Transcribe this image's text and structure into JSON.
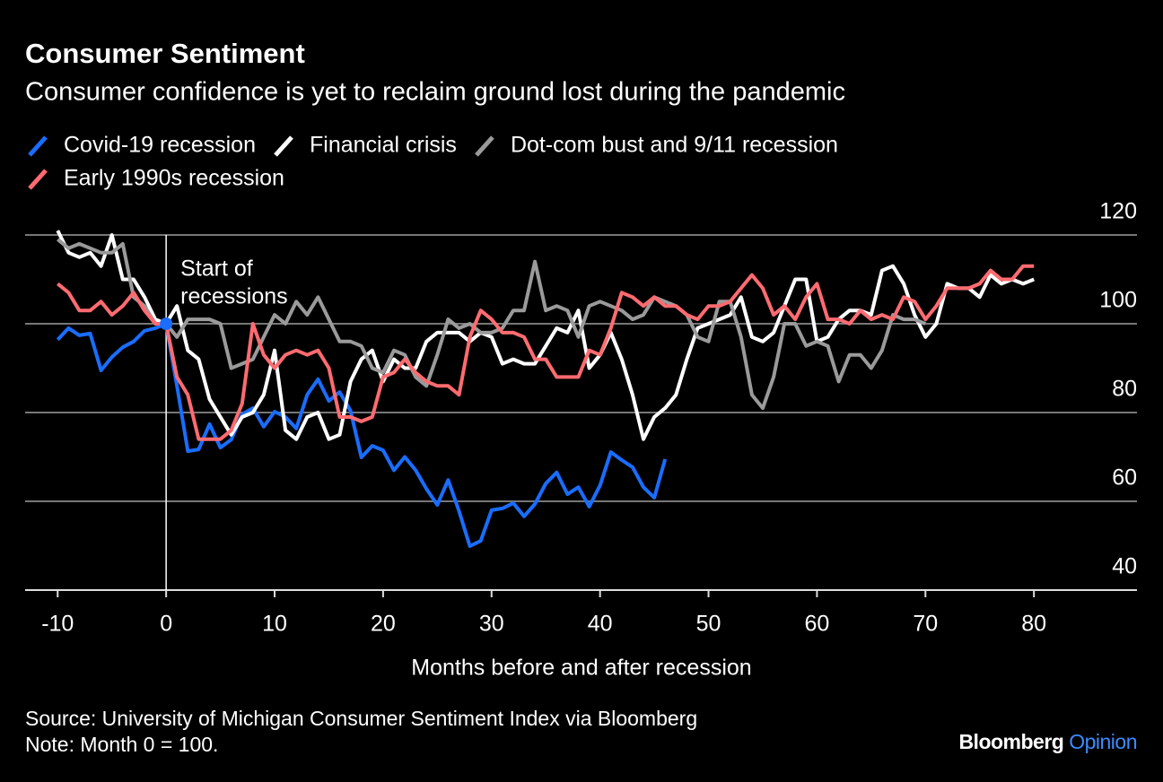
{
  "chart_data": {
    "type": "line",
    "title": "Consumer Sentiment",
    "subtitle": "Consumer confidence is yet to reclaim ground lost during the pandemic",
    "x_label": "Months before and after recession",
    "source": "Source: University of Michigan Consumer Sentiment Index via Bloomberg",
    "note": "Note: Month 0 = 100.",
    "brand": [
      "Bloomberg",
      "Opinion"
    ],
    "reference_line": {
      "x": 0,
      "label": [
        "Start of",
        "recessions"
      ]
    },
    "xlim": [
      -13,
      89.5
    ],
    "ylim": [
      40,
      120
    ],
    "xticks": [
      -10,
      0,
      10,
      20,
      30,
      40,
      50,
      60,
      70,
      80
    ],
    "yticks": [
      40,
      60,
      80,
      100,
      120
    ],
    "grid": true,
    "x": [
      -10,
      -9,
      -8,
      -7,
      -6,
      -5,
      -4,
      -3,
      -2,
      -1,
      0,
      1,
      2,
      3,
      4,
      5,
      6,
      7,
      8,
      9,
      10,
      11,
      12,
      13,
      14,
      15,
      16,
      17,
      18,
      19,
      20,
      21,
      22,
      23,
      24,
      25,
      26,
      27,
      28,
      29,
      30,
      31,
      32,
      33,
      34,
      35,
      36,
      37,
      38,
      39,
      40,
      41,
      42,
      43,
      44,
      45,
      46,
      47,
      48,
      49,
      50,
      51,
      52,
      53,
      54,
      55,
      56,
      57,
      58,
      59,
      60,
      61,
      62,
      63,
      64,
      65,
      66,
      67,
      68,
      69,
      70,
      71,
      72,
      73,
      74,
      75,
      76,
      77,
      78,
      79,
      80
    ],
    "series": [
      {
        "name": "Covid-19 recession",
        "color": "#1a6dff",
        "values": [
          96.4,
          99,
          97.4,
          97.8,
          89.5,
          92.5,
          94.7,
          96,
          98.4,
          99,
          100,
          86,
          71.3,
          71.7,
          77.4,
          72.1,
          73.9,
          79.6,
          81,
          76.8,
          80.2,
          79,
          76.4,
          84,
          87.5,
          82.6,
          84.6,
          80.4,
          69.9,
          72.5,
          71.5,
          67,
          70,
          67,
          62.8,
          59.2,
          64.8,
          57.8,
          49.9,
          51.1,
          58,
          58.4,
          59.6,
          56.6,
          59.4,
          64,
          66.5,
          61.6,
          63.2,
          58.8,
          63.6,
          71.1,
          69.3,
          67.7,
          63.2,
          60.8,
          69.5,
          null,
          null,
          null,
          null,
          null,
          null,
          null,
          null,
          null,
          null,
          null,
          null,
          null,
          null,
          null,
          null,
          null,
          null,
          null,
          null,
          null,
          null,
          null,
          null,
          null,
          null,
          null,
          null,
          null,
          null,
          null,
          null,
          null,
          null
        ]
      },
      {
        "name": "Financial crisis",
        "color": "#ffffff",
        "values": [
          121,
          116,
          115,
          116,
          113,
          120,
          110,
          110,
          106,
          101,
          100,
          104,
          94,
          92,
          83,
          79,
          75,
          79,
          80,
          84,
          94,
          76,
          74,
          79,
          80,
          74,
          75,
          87,
          92,
          94,
          87,
          92,
          90,
          90,
          96,
          98,
          98,
          98,
          96,
          98,
          97,
          91,
          92,
          91,
          91,
          95,
          99,
          98,
          103,
          90,
          93,
          98,
          92,
          84,
          74,
          79,
          81,
          84,
          92,
          99,
          100,
          101,
          102,
          106,
          97,
          96,
          98,
          104,
          110,
          110,
          96,
          97,
          101,
          103,
          103,
          102,
          112,
          113,
          109,
          102,
          97,
          100,
          109,
          108,
          108,
          106,
          111,
          109,
          110,
          109,
          110
        ]
      },
      {
        "name": "Dot-com bust and 9/11 recession",
        "color": "#9a9a9a",
        "values": [
          119,
          117,
          118,
          117,
          116,
          116,
          118,
          106,
          104,
          100,
          100,
          97,
          101,
          101,
          101,
          100,
          90,
          91,
          92,
          97,
          102,
          100,
          105,
          102,
          106,
          101,
          96,
          96,
          95,
          90,
          89,
          94,
          93,
          88,
          86,
          93,
          101,
          99,
          100,
          98,
          98,
          99,
          103,
          103,
          114,
          103,
          104,
          103,
          97,
          104,
          105,
          104,
          103,
          101,
          102,
          106,
          105,
          104,
          102,
          97,
          96,
          105,
          105,
          97,
          84,
          81,
          88,
          100,
          100,
          95,
          96,
          95,
          87,
          93,
          93,
          90,
          94,
          102,
          101,
          101,
          100,
          null,
          null,
          null,
          null,
          null,
          null,
          null,
          null,
          null,
          null
        ]
      },
      {
        "name": "Early 1990s recession",
        "color": "#ff6b70",
        "values": [
          109,
          107,
          103,
          103,
          105,
          102,
          104,
          107,
          103,
          100,
          100,
          88,
          84,
          74,
          74,
          74,
          76,
          82,
          100,
          93,
          90,
          93,
          94,
          93,
          94,
          90,
          79,
          79,
          78,
          79,
          88,
          89,
          92,
          89,
          87,
          86,
          86,
          84,
          97,
          103,
          101,
          98,
          98,
          97,
          92,
          92,
          88,
          88,
          88,
          94,
          93,
          99,
          107,
          106,
          104,
          106,
          104,
          104,
          102,
          101,
          104,
          104,
          105,
          108,
          111,
          108,
          102,
          104,
          101,
          106,
          109,
          101,
          101,
          100,
          103,
          101,
          102,
          101,
          106,
          105,
          101,
          104,
          108,
          108,
          108,
          109,
          112,
          110,
          110,
          113,
          113
        ]
      }
    ]
  }
}
